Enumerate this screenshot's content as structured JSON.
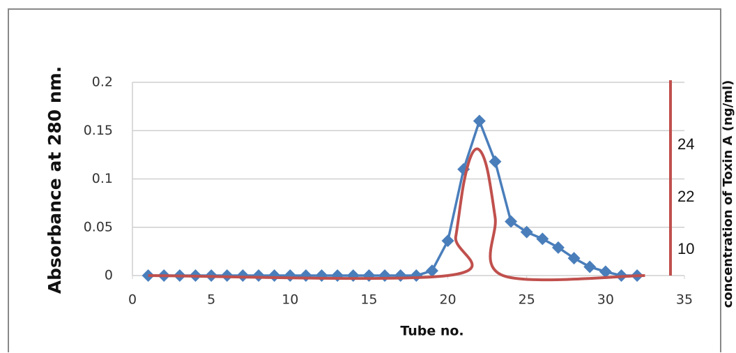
{
  "chart_data": {
    "type": "line",
    "y_label": "Absorbance at 280 nm.",
    "x_label": "Tube no.",
    "xlim": [
      0,
      35
    ],
    "xticks": [
      0,
      5,
      10,
      15,
      20,
      25,
      30,
      35
    ],
    "ylim": [
      0,
      0.2
    ],
    "yticks": [
      0,
      0.05,
      0.1,
      0.15,
      0.2
    ],
    "grid": true,
    "series": [
      {
        "color": "#4a7ebb",
        "marker": "diamond",
        "x": [
          1,
          2,
          3,
          4,
          5,
          6,
          7,
          8,
          9,
          10,
          11,
          12,
          13,
          14,
          15,
          16,
          17,
          18,
          19,
          20,
          21,
          22,
          23,
          24,
          25,
          26,
          27,
          28,
          29,
          30,
          31,
          32
        ],
        "values": [
          0,
          0,
          0,
          0,
          0,
          0,
          0,
          0,
          0,
          0,
          0,
          0,
          0,
          0,
          0,
          0,
          0,
          0,
          0.005,
          0.036,
          0.11,
          0.16,
          0.118,
          0.056,
          0.045,
          0.038,
          0.029,
          0.018,
          0.009,
          0.004,
          0,
          0
        ]
      },
      {
        "color": "#c0504d",
        "marker": "none",
        "smooth": true,
        "x": [
          1,
          20,
          20.5,
          21,
          21.5,
          22,
          22.5,
          23,
          23.5,
          32.5
        ],
        "values": [
          0,
          0,
          0.04,
          0.095,
          0.125,
          0.13,
          0.11,
          0.06,
          0,
          0
        ]
      }
    ],
    "right_axis": {
      "label": "concentration of Toxin A (ng/ml)",
      "color": "#c0504d",
      "tick_labels": [
        "24",
        "22",
        "10"
      ]
    }
  }
}
